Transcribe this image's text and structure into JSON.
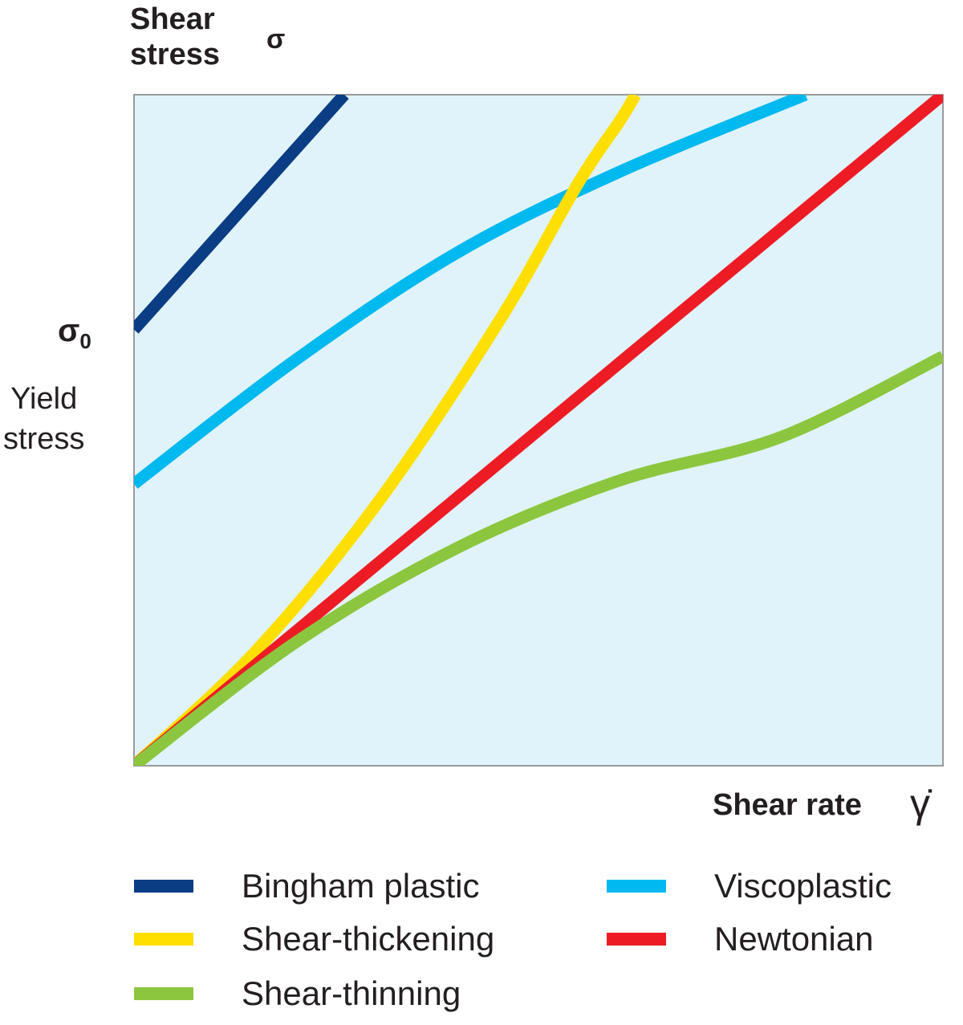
{
  "chart_data": {
    "type": "line",
    "title": "",
    "ylabel_line1": "Shear",
    "ylabel_line2": "stress",
    "ylabel_symbol": "σ",
    "xlabel": "Shear rate",
    "xlabel_symbol": "γ̇",
    "yield_symbol": "σ",
    "yield_subscript": "0",
    "yield_label_line1": "Yield",
    "yield_label_line2": "stress",
    "xlim": [
      0,
      10
    ],
    "ylim": [
      0,
      10
    ],
    "grid": false,
    "legend_position": "bottom",
    "background": "#e0f3fb",
    "series": [
      {
        "name": "Bingham plastic",
        "color": "#0a3d84",
        "x": [
          0,
          2.6
        ],
        "y": [
          6.5,
          10
        ]
      },
      {
        "name": "Shear-thickening",
        "color": "#ffdf00",
        "x": [
          0,
          1.5,
          3,
          4.5,
          5.5,
          6,
          6.2
        ],
        "y": [
          0,
          1.7,
          3.9,
          6.6,
          8.7,
          9.6,
          10
        ]
      },
      {
        "name": "Shear-thinning",
        "color": "#8cc63f",
        "x": [
          0,
          2,
          4,
          6,
          8,
          10
        ],
        "y": [
          0,
          1.84,
          3.25,
          4.25,
          4.9,
          6.1
        ]
      },
      {
        "name": "Viscoplastic",
        "color": "#00b9ef",
        "x": [
          0,
          2,
          4,
          6,
          8.3
        ],
        "y": [
          4.2,
          6.05,
          7.65,
          8.85,
          10
        ]
      },
      {
        "name": "Newtonian",
        "color": "#ed1c24",
        "x": [
          0,
          10
        ],
        "y": [
          0,
          10
        ]
      }
    ]
  },
  "legend": [
    {
      "label": "Bingham plastic",
      "color": "#0a3d84"
    },
    {
      "label": "Shear-thickening",
      "color": "#ffdf00"
    },
    {
      "label": "Shear-thinning",
      "color": "#8cc63f"
    },
    {
      "label": "Viscoplastic",
      "color": "#00b9ef"
    },
    {
      "label": "Newtonian",
      "color": "#ed1c24"
    }
  ]
}
